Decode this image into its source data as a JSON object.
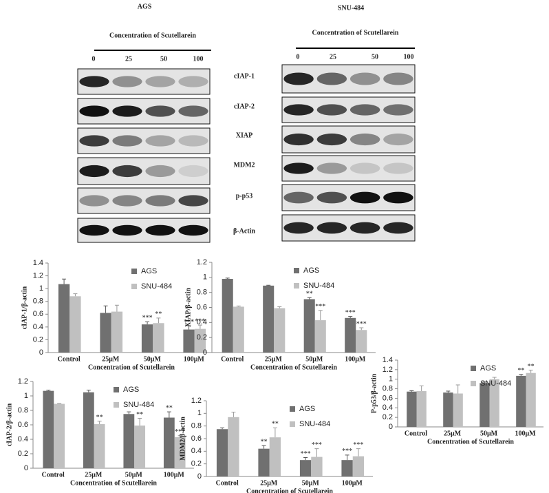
{
  "blots": {
    "panels": [
      {
        "title": "AGS",
        "subtitle": "Concentration of Scutellarein",
        "lanes": [
          "0",
          "25",
          "50",
          "100"
        ]
      },
      {
        "title": "SNU-484",
        "subtitle": "Concentration of Scutellarein",
        "lanes": [
          "0",
          "25",
          "50",
          "100"
        ]
      }
    ],
    "proteins": [
      "cIAP-1",
      "cIAP-2",
      "XIAP",
      "MDM2",
      "p-p53",
      "β-Actin"
    ]
  },
  "chart_data": [
    {
      "type": "bar",
      "ylabel": "cIAP-1/β-actin",
      "xlabel": "Concentration of Scutellarein",
      "categories": [
        "Control",
        "25μM",
        "50μM",
        "100μM"
      ],
      "ylim": [
        0,
        1.4
      ],
      "yticks": [
        0,
        0.2,
        0.4,
        0.6,
        0.8,
        1,
        1.2,
        1.4
      ],
      "series": [
        {
          "name": "AGS",
          "color": "#707070",
          "values": [
            1.07,
            0.62,
            0.44,
            0.36
          ],
          "errors": [
            0.08,
            0.11,
            0.04,
            0.06
          ],
          "annotations": [
            null,
            null,
            "***",
            "***"
          ]
        },
        {
          "name": "SNU-484",
          "color": "#c0c0c0",
          "values": [
            0.88,
            0.64,
            0.46,
            0.37
          ],
          "errors": [
            0.04,
            0.1,
            0.08,
            0.06
          ],
          "annotations": [
            null,
            null,
            "**",
            "***"
          ]
        }
      ]
    },
    {
      "type": "bar",
      "ylabel": "XIAP/β-actin",
      "xlabel": "Concentration of Scutellarein",
      "categories": [
        "Control",
        "25μM",
        "50μM",
        "100μM"
      ],
      "ylim": [
        0,
        1.2
      ],
      "yticks": [
        0,
        0.2,
        0.4,
        0.6,
        0.8,
        1,
        1.2
      ],
      "series": [
        {
          "name": "AGS",
          "color": "#707070",
          "values": [
            0.98,
            0.89,
            0.71,
            0.46
          ],
          "errors": [
            0.01,
            0.005,
            0.02,
            0.02
          ],
          "annotations": [
            null,
            null,
            "**",
            "***"
          ]
        },
        {
          "name": "SNU-484",
          "color": "#c0c0c0",
          "values": [
            0.61,
            0.59,
            0.43,
            0.3
          ],
          "errors": [
            0.01,
            0.02,
            0.13,
            0.03
          ],
          "annotations": [
            null,
            null,
            "***",
            "***"
          ]
        }
      ]
    },
    {
      "type": "bar",
      "ylabel": "P-p53/β-actin",
      "xlabel": "Concentration of Scutellarein",
      "categories": [
        "Control",
        "25μM",
        "50μM",
        "100μM"
      ],
      "ylim": [
        0,
        1.4
      ],
      "yticks": [
        0,
        0.2,
        0.4,
        0.6,
        0.8,
        1,
        1.2,
        1.4
      ],
      "series": [
        {
          "name": "AGS",
          "color": "#707070",
          "values": [
            0.74,
            0.72,
            0.92,
            1.07
          ],
          "errors": [
            0.02,
            0.03,
            0.02,
            0.03
          ],
          "annotations": [
            null,
            null,
            null,
            "**"
          ]
        },
        {
          "name": "SNU-484",
          "color": "#c0c0c0",
          "values": [
            0.75,
            0.7,
            1.0,
            1.13
          ],
          "errors": [
            0.11,
            0.18,
            0.04,
            0.06
          ],
          "annotations": [
            null,
            null,
            null,
            "**"
          ]
        }
      ]
    },
    {
      "type": "bar",
      "ylabel": "cIAP-2/β-actin",
      "xlabel": "Concentration of Scutellarein",
      "categories": [
        "Control",
        "25μM",
        "50μM",
        "100μM"
      ],
      "ylim": [
        0,
        1.2
      ],
      "yticks": [
        0,
        0.2,
        0.4,
        0.6,
        0.8,
        1,
        1.2
      ],
      "series": [
        {
          "name": "AGS",
          "color": "#707070",
          "values": [
            1.07,
            1.05,
            0.75,
            0.7
          ],
          "errors": [
            0.01,
            0.03,
            0.03,
            0.08
          ],
          "annotations": [
            null,
            null,
            null,
            "**"
          ]
        },
        {
          "name": "SNU-484",
          "color": "#c0c0c0",
          "values": [
            0.89,
            0.61,
            0.59,
            0.43
          ],
          "errors": [
            0.005,
            0.04,
            0.1,
            0.02
          ],
          "annotations": [
            null,
            "**",
            "**",
            "***"
          ]
        }
      ]
    },
    {
      "type": "bar",
      "ylabel": "MDM2/β-actin",
      "xlabel": "Concentration of Scutellarein",
      "categories": [
        "Control",
        "25μM",
        "50μM",
        "100μM"
      ],
      "ylim": [
        0,
        1.2
      ],
      "yticks": [
        0,
        0.2,
        0.4,
        0.6,
        0.8,
        1,
        1.2
      ],
      "series": [
        {
          "name": "AGS",
          "color": "#707070",
          "values": [
            0.75,
            0.44,
            0.26,
            0.26
          ],
          "errors": [
            0.02,
            0.05,
            0.04,
            0.08
          ],
          "annotations": [
            null,
            "**",
            "***",
            "***"
          ]
        },
        {
          "name": "SNU-484",
          "color": "#c0c0c0",
          "values": [
            0.94,
            0.62,
            0.31,
            0.32
          ],
          "errors": [
            0.08,
            0.15,
            0.13,
            0.12
          ],
          "annotations": [
            null,
            "**",
            "***",
            "***"
          ]
        }
      ]
    }
  ]
}
